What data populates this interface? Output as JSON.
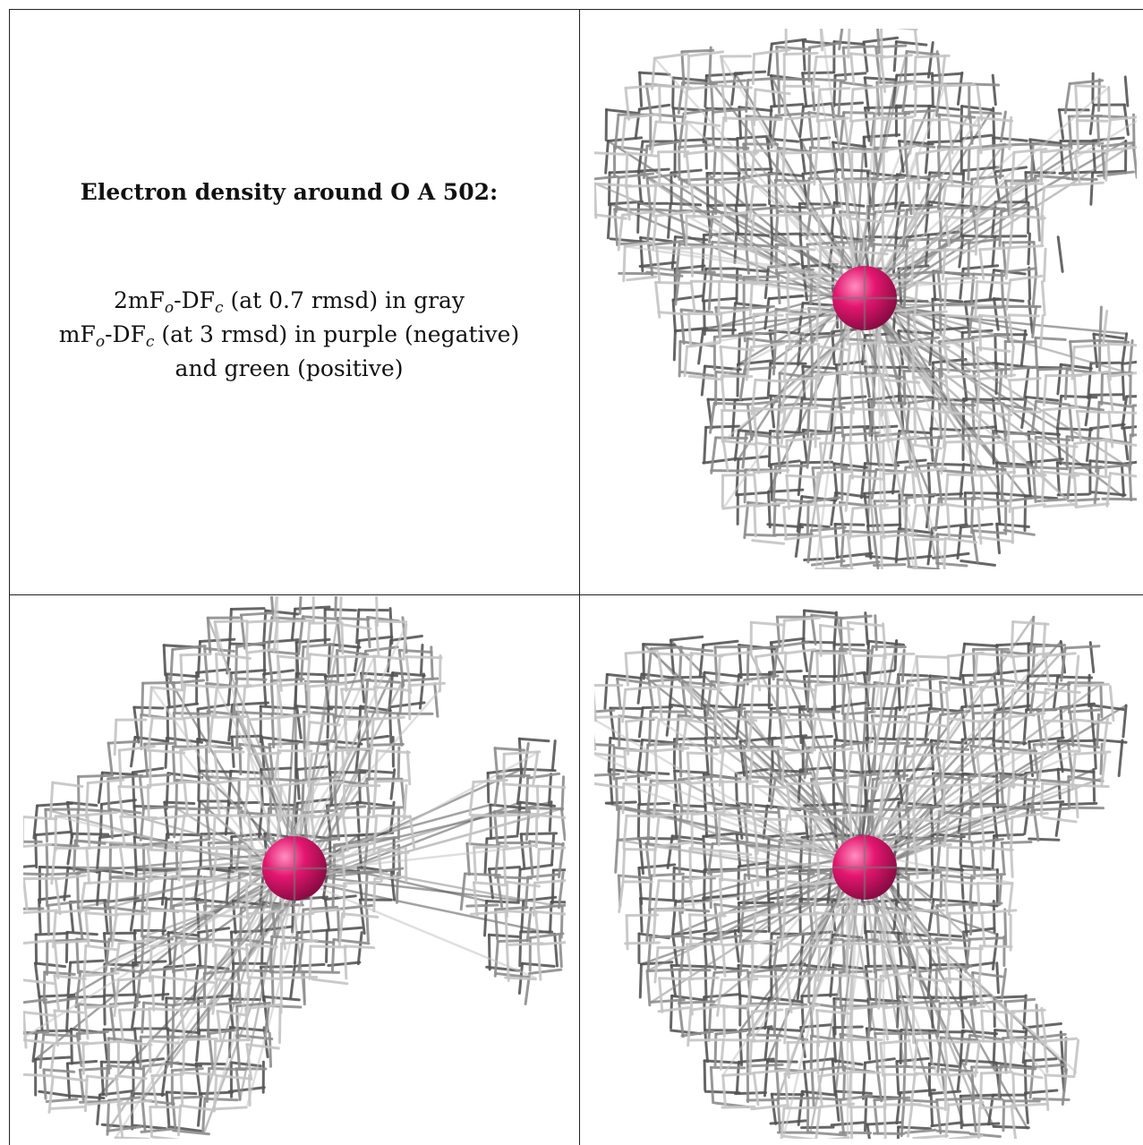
{
  "legend": {
    "title": "Electron density around O A 502:",
    "line1": {
      "a": "2mF",
      "sub1": "o",
      "b": "-DF",
      "sub2": "c",
      "c": " (at 0.7 rmsd) in gray"
    },
    "line2": {
      "a": "mF",
      "sub1": "o",
      "b": "-DF",
      "sub2": "c",
      "c": " (at 3 rmsd) in purple (negative)"
    },
    "line3": "and green (positive)"
  },
  "panels": [
    {
      "name": "view-top-right",
      "atom_color": "#e3166f",
      "mesh_color": "#9a9a9a"
    },
    {
      "name": "view-bottom-left",
      "atom_color": "#e3166f",
      "mesh_color": "#9a9a9a"
    },
    {
      "name": "view-bottom-right",
      "atom_color": "#e3166f",
      "mesh_color": "#9a9a9a"
    }
  ]
}
